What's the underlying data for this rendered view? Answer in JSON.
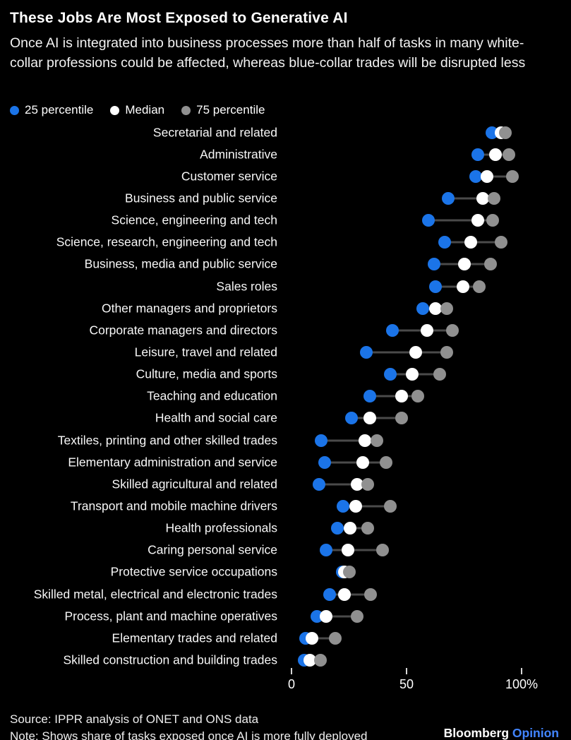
{
  "header": {
    "title": "These Jobs Are Most Exposed to Generative AI",
    "subtitle": "Once AI is integrated into business processes more than half of tasks in many white-collar professions could be affected, whereas blue-collar trades will be disrupted less"
  },
  "colors": {
    "background": "#000000",
    "p25_blue": "#1b74e8",
    "median_white": "#ffffff",
    "p75_gray": "#909090",
    "connector_gray": "#4a4a4a",
    "opinion_blue": "#4285ff"
  },
  "legend": {
    "items": [
      {
        "label": "25 percentile",
        "color": "#1b74e8"
      },
      {
        "label": "Median",
        "color": "#ffffff"
      },
      {
        "label": "75 percentile",
        "color": "#909090"
      }
    ]
  },
  "chart_data": {
    "type": "scatter",
    "variant": "horizontal dot-plot / dumbbell",
    "unit": "% of tasks exposed",
    "xlim": [
      0,
      100
    ],
    "grid": false,
    "legend_position": "top-left",
    "x_ticks": [
      {
        "value": 0,
        "label": "0"
      },
      {
        "value": 50,
        "label": "50"
      },
      {
        "value": 100,
        "label": "100%"
      }
    ],
    "categories": [
      "Secretarial and related",
      "Administrative",
      "Customer service",
      "Business and public service",
      "Science, engineering and tech",
      "Science, research, engineering and tech",
      "Business, media and public service",
      "Sales roles",
      "Other managers and proprietors",
      "Corporate managers and directors",
      "Leisure, travel and related",
      "Culture, media and sports",
      "Teaching and education",
      "Health and social care",
      "Textiles, printing and other skilled trades",
      "Elementary administration and service",
      "Skilled agricultural and related",
      "Transport and mobile machine drivers",
      "Health professionals",
      "Caring personal service",
      "Protective service occupations",
      "Skilled metal, electrical and electronic trades",
      "Process, plant and machine operatives",
      "Elementary trades and related",
      "Skilled construction and building trades"
    ],
    "series": [
      {
        "name": "25 percentile",
        "color": "#1b74e8",
        "values": [
          87,
          81,
          80,
          68,
          59.5,
          66.5,
          62,
          62.5,
          57,
          44,
          32.5,
          43,
          34,
          26,
          13,
          14.5,
          12,
          22.5,
          20,
          15,
          22,
          16.5,
          11,
          6,
          5.5
        ]
      },
      {
        "name": "Median",
        "color": "#ffffff",
        "values": [
          91,
          88.5,
          85,
          83,
          81,
          78,
          75,
          74.5,
          62.5,
          59,
          54,
          52.5,
          48,
          34,
          32,
          31,
          28.5,
          28,
          25.5,
          24.5,
          23,
          23,
          15,
          9,
          8
        ]
      },
      {
        "name": "75 percentile",
        "color": "#909090",
        "values": [
          93,
          94.5,
          96,
          88,
          87.5,
          91,
          86.5,
          81.5,
          67.5,
          70,
          67.5,
          64.5,
          55,
          48,
          37,
          41,
          33,
          43,
          33,
          39.5,
          25,
          34.5,
          28.5,
          19,
          12.5
        ]
      }
    ]
  },
  "footer": {
    "source": "Source: IPPR analysis of ONET and ONS data",
    "note": "Note: Shows share of tasks exposed once AI is more fully deployed",
    "brand": "Bloomberg",
    "brand_suffix": "Opinion"
  }
}
